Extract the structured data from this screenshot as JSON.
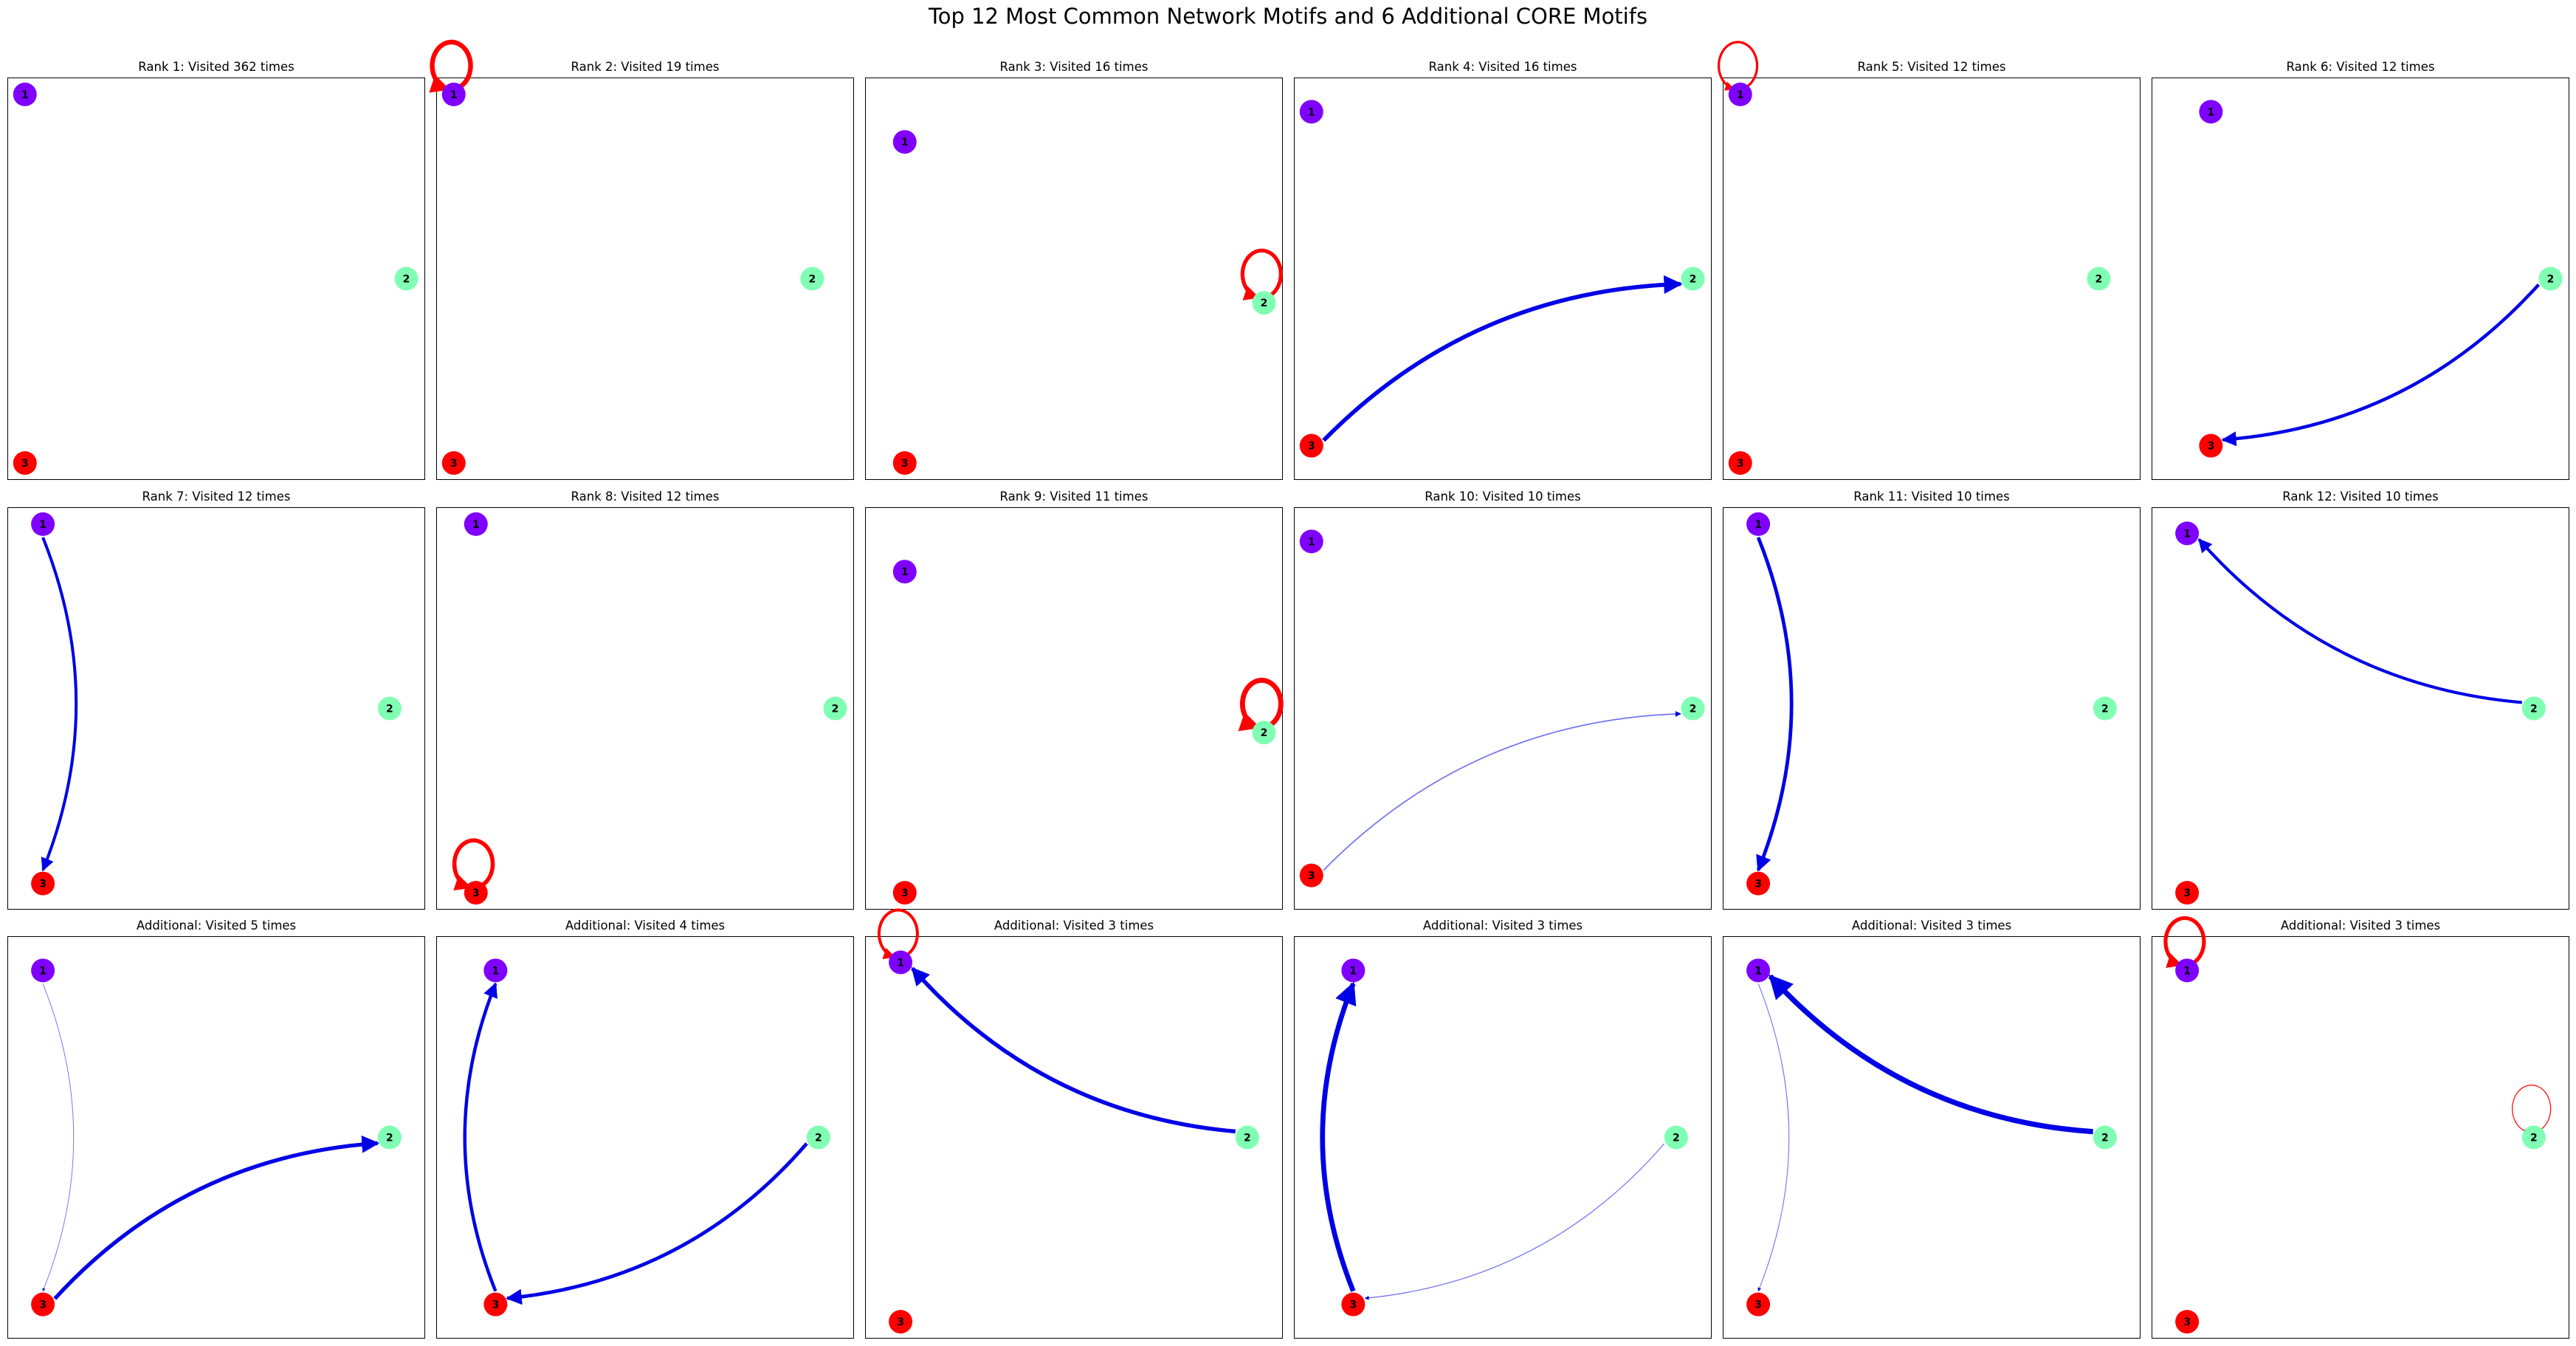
{
  "title": "Top 12 Most Common Network Motifs and 6 Additional CORE Motifs",
  "colors": {
    "node1": "#7f00ff",
    "node2": "#80ffb4",
    "node3": "#ff0000",
    "directed_edge": "#0000e6",
    "self_loop": "#ff0000"
  },
  "panels": [
    {
      "title": "Rank 1: Visited 362 times",
      "nodes": [
        [
          0.042,
          0.958
        ],
        [
          0.955,
          0.5
        ],
        [
          0.042,
          0.042
        ]
      ],
      "edges": []
    },
    {
      "title": "Rank 2: Visited 19 times",
      "nodes": [
        [
          0.042,
          0.958
        ],
        [
          0.9,
          0.5
        ],
        [
          0.042,
          0.042
        ]
      ],
      "edges": [
        {
          "from": 1,
          "to": 1,
          "w": 3.2
        }
      ]
    },
    {
      "title": "Rank 3: Visited 16 times",
      "nodes": [
        [
          0.095,
          0.84
        ],
        [
          0.955,
          0.44
        ],
        [
          0.095,
          0.042
        ]
      ],
      "edges": [
        {
          "from": 2,
          "to": 2,
          "w": 2.6
        }
      ]
    },
    {
      "title": "Rank 4: Visited 16 times",
      "nodes": [
        [
          0.042,
          0.915
        ],
        [
          0.955,
          0.5
        ],
        [
          0.042,
          0.085
        ]
      ],
      "edges": [
        {
          "from": 3,
          "to": 2,
          "w": 3.5
        }
      ]
    },
    {
      "title": "Rank 5: Visited 12 times",
      "nodes": [
        [
          0.042,
          0.958
        ],
        [
          0.9,
          0.5
        ],
        [
          0.042,
          0.042
        ]
      ],
      "edges": [
        {
          "from": 1,
          "to": 1,
          "w": 1.6
        }
      ]
    },
    {
      "title": "Rank 6: Visited 12 times",
      "nodes": [
        [
          0.142,
          0.915
        ],
        [
          0.955,
          0.5
        ],
        [
          0.142,
          0.085
        ]
      ],
      "edges": [
        {
          "from": 2,
          "to": 3,
          "w": 2.8
        }
      ]
    },
    {
      "title": "Rank 7: Visited 12 times",
      "nodes": [
        [
          0.085,
          0.958
        ],
        [
          0.915,
          0.5
        ],
        [
          0.085,
          0.065
        ]
      ],
      "edges": [
        {
          "from": 1,
          "to": 3,
          "w": 2.5
        }
      ]
    },
    {
      "title": "Rank 8: Visited 12 times",
      "nodes": [
        [
          0.095,
          0.958
        ],
        [
          0.955,
          0.5
        ],
        [
          0.095,
          0.042
        ]
      ],
      "edges": [
        {
          "from": 3,
          "to": 3,
          "w": 2.8
        }
      ]
    },
    {
      "title": "Rank 9: Visited 11 times",
      "nodes": [
        [
          0.095,
          0.84
        ],
        [
          0.955,
          0.44
        ],
        [
          0.095,
          0.042
        ]
      ],
      "edges": [
        {
          "from": 2,
          "to": 2,
          "w": 3.4
        }
      ]
    },
    {
      "title": "Rank 10: Visited 10 times",
      "nodes": [
        [
          0.042,
          0.915
        ],
        [
          0.955,
          0.5
        ],
        [
          0.042,
          0.085
        ]
      ],
      "edges": [
        {
          "from": 3,
          "to": 2,
          "w": 1.1
        }
      ]
    },
    {
      "title": "Rank 11: Visited 10 times",
      "nodes": [
        [
          0.085,
          0.958
        ],
        [
          0.915,
          0.5
        ],
        [
          0.085,
          0.065
        ]
      ],
      "edges": [
        {
          "from": 1,
          "to": 3,
          "w": 3.0
        }
      ]
    },
    {
      "title": "Rank 12: Visited 10 times",
      "nodes": [
        [
          0.085,
          0.935
        ],
        [
          0.915,
          0.5
        ],
        [
          0.085,
          0.042
        ]
      ],
      "edges": [
        {
          "from": 2,
          "to": 1,
          "w": 2.6
        }
      ]
    },
    {
      "title": "Additional: Visited 5 times",
      "nodes": [
        [
          0.085,
          0.915
        ],
        [
          0.915,
          0.5
        ],
        [
          0.085,
          0.085
        ]
      ],
      "edges": [
        {
          "from": 3,
          "to": 2,
          "w": 3.3
        },
        {
          "from": 1,
          "to": 3,
          "w": 0.6
        }
      ]
    },
    {
      "title": "Additional: Visited 4 times",
      "nodes": [
        [
          0.142,
          0.915
        ],
        [
          0.915,
          0.5
        ],
        [
          0.142,
          0.085
        ]
      ],
      "edges": [
        {
          "from": 2,
          "to": 3,
          "w": 3.0
        },
        {
          "from": 3,
          "to": 1,
          "w": 2.8
        }
      ]
    },
    {
      "title": "Additional: Visited 3 times",
      "nodes": [
        [
          0.085,
          0.935
        ],
        [
          0.915,
          0.5
        ],
        [
          0.085,
          0.042
        ]
      ],
      "edges": [
        {
          "from": 2,
          "to": 1,
          "w": 3.4
        },
        {
          "from": 1,
          "to": 1,
          "w": 2.0
        }
      ]
    },
    {
      "title": "Additional: Visited 3 times",
      "nodes": [
        [
          0.142,
          0.915
        ],
        [
          0.915,
          0.5
        ],
        [
          0.142,
          0.085
        ]
      ],
      "edges": [
        {
          "from": 2,
          "to": 3,
          "w": 0.8
        },
        {
          "from": 3,
          "to": 1,
          "w": 4.2
        }
      ]
    },
    {
      "title": "Additional: Visited 3 times",
      "nodes": [
        [
          0.085,
          0.915
        ],
        [
          0.915,
          0.5
        ],
        [
          0.085,
          0.085
        ]
      ],
      "edges": [
        {
          "from": 2,
          "to": 1,
          "w": 4.5
        },
        {
          "from": 1,
          "to": 3,
          "w": 0.7
        }
      ]
    },
    {
      "title": "Additional: Visited 3 times",
      "nodes": [
        [
          0.085,
          0.915
        ],
        [
          0.915,
          0.5
        ],
        [
          0.085,
          0.042
        ]
      ],
      "edges": [
        {
          "from": 1,
          "to": 1,
          "w": 2.6
        },
        {
          "from": 2,
          "to": 2,
          "w": 0.6
        }
      ]
    }
  ]
}
